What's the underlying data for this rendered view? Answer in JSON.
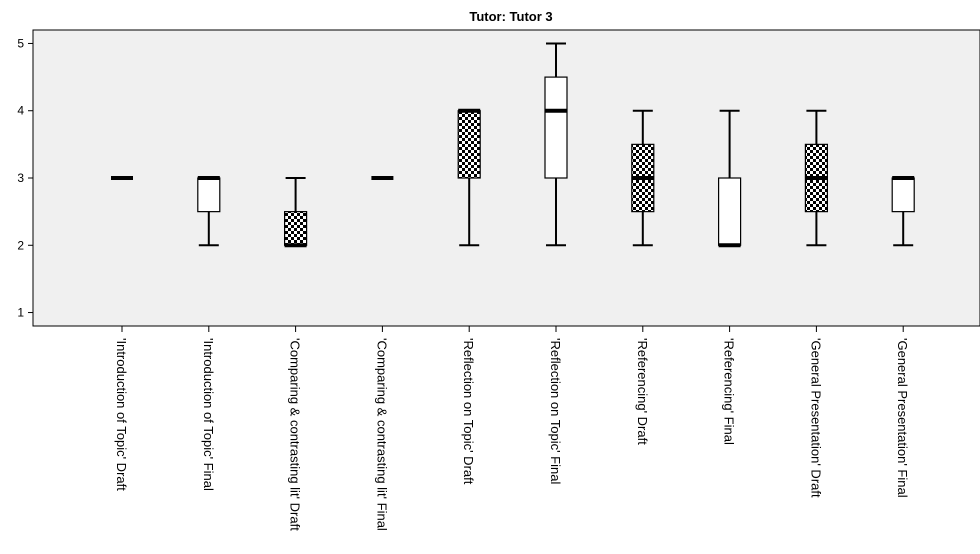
{
  "chart_data": {
    "type": "boxplot",
    "title": "Tutor: Tutor 3",
    "xlabel": "",
    "ylabel": "",
    "ylim": [
      0.8,
      5.2
    ],
    "yticks": [
      1,
      2,
      3,
      4,
      5
    ],
    "grid": false,
    "plot_background": "#f0f0f0",
    "categories": [
      "'Introduction of Topic' Draft",
      "'Introduction of Topic' Final",
      "'Comparing & contrasting lit' Draft",
      "'Comparing & contrasting lit' Final",
      "'Reflection on Topic' Draft",
      "'Reflection on Topic' Final",
      "'Referencing' Draft",
      "'Referencing' Final",
      "'General Presentation' Draft",
      "'General Presentation' Final"
    ],
    "boxes": [
      {
        "min": 3,
        "q1": 3,
        "median": 3,
        "q3": 3,
        "max": 3,
        "fill": "plain"
      },
      {
        "min": 2,
        "q1": 2.5,
        "median": 3,
        "q3": 3,
        "max": 3,
        "fill": "plain"
      },
      {
        "min": 2,
        "q1": 2,
        "median": 2,
        "q3": 2.5,
        "max": 3,
        "fill": "checker"
      },
      {
        "min": 3,
        "q1": 3,
        "median": 3,
        "q3": 3,
        "max": 3,
        "fill": "plain"
      },
      {
        "min": 2,
        "q1": 3,
        "median": 4,
        "q3": 4,
        "max": 4,
        "fill": "checker"
      },
      {
        "min": 2,
        "q1": 3,
        "median": 4,
        "q3": 4.5,
        "max": 5,
        "fill": "plain"
      },
      {
        "min": 2,
        "q1": 2.5,
        "median": 3,
        "q3": 3.5,
        "max": 4,
        "fill": "checker"
      },
      {
        "min": 2,
        "q1": 2,
        "median": 2,
        "q3": 3,
        "max": 4,
        "fill": "plain"
      },
      {
        "min": 2,
        "q1": 2.5,
        "median": 3,
        "q3": 3.5,
        "max": 4,
        "fill": "checker"
      },
      {
        "min": 2,
        "q1": 2.5,
        "median": 3,
        "q3": 3,
        "max": 3,
        "fill": "plain"
      }
    ]
  }
}
